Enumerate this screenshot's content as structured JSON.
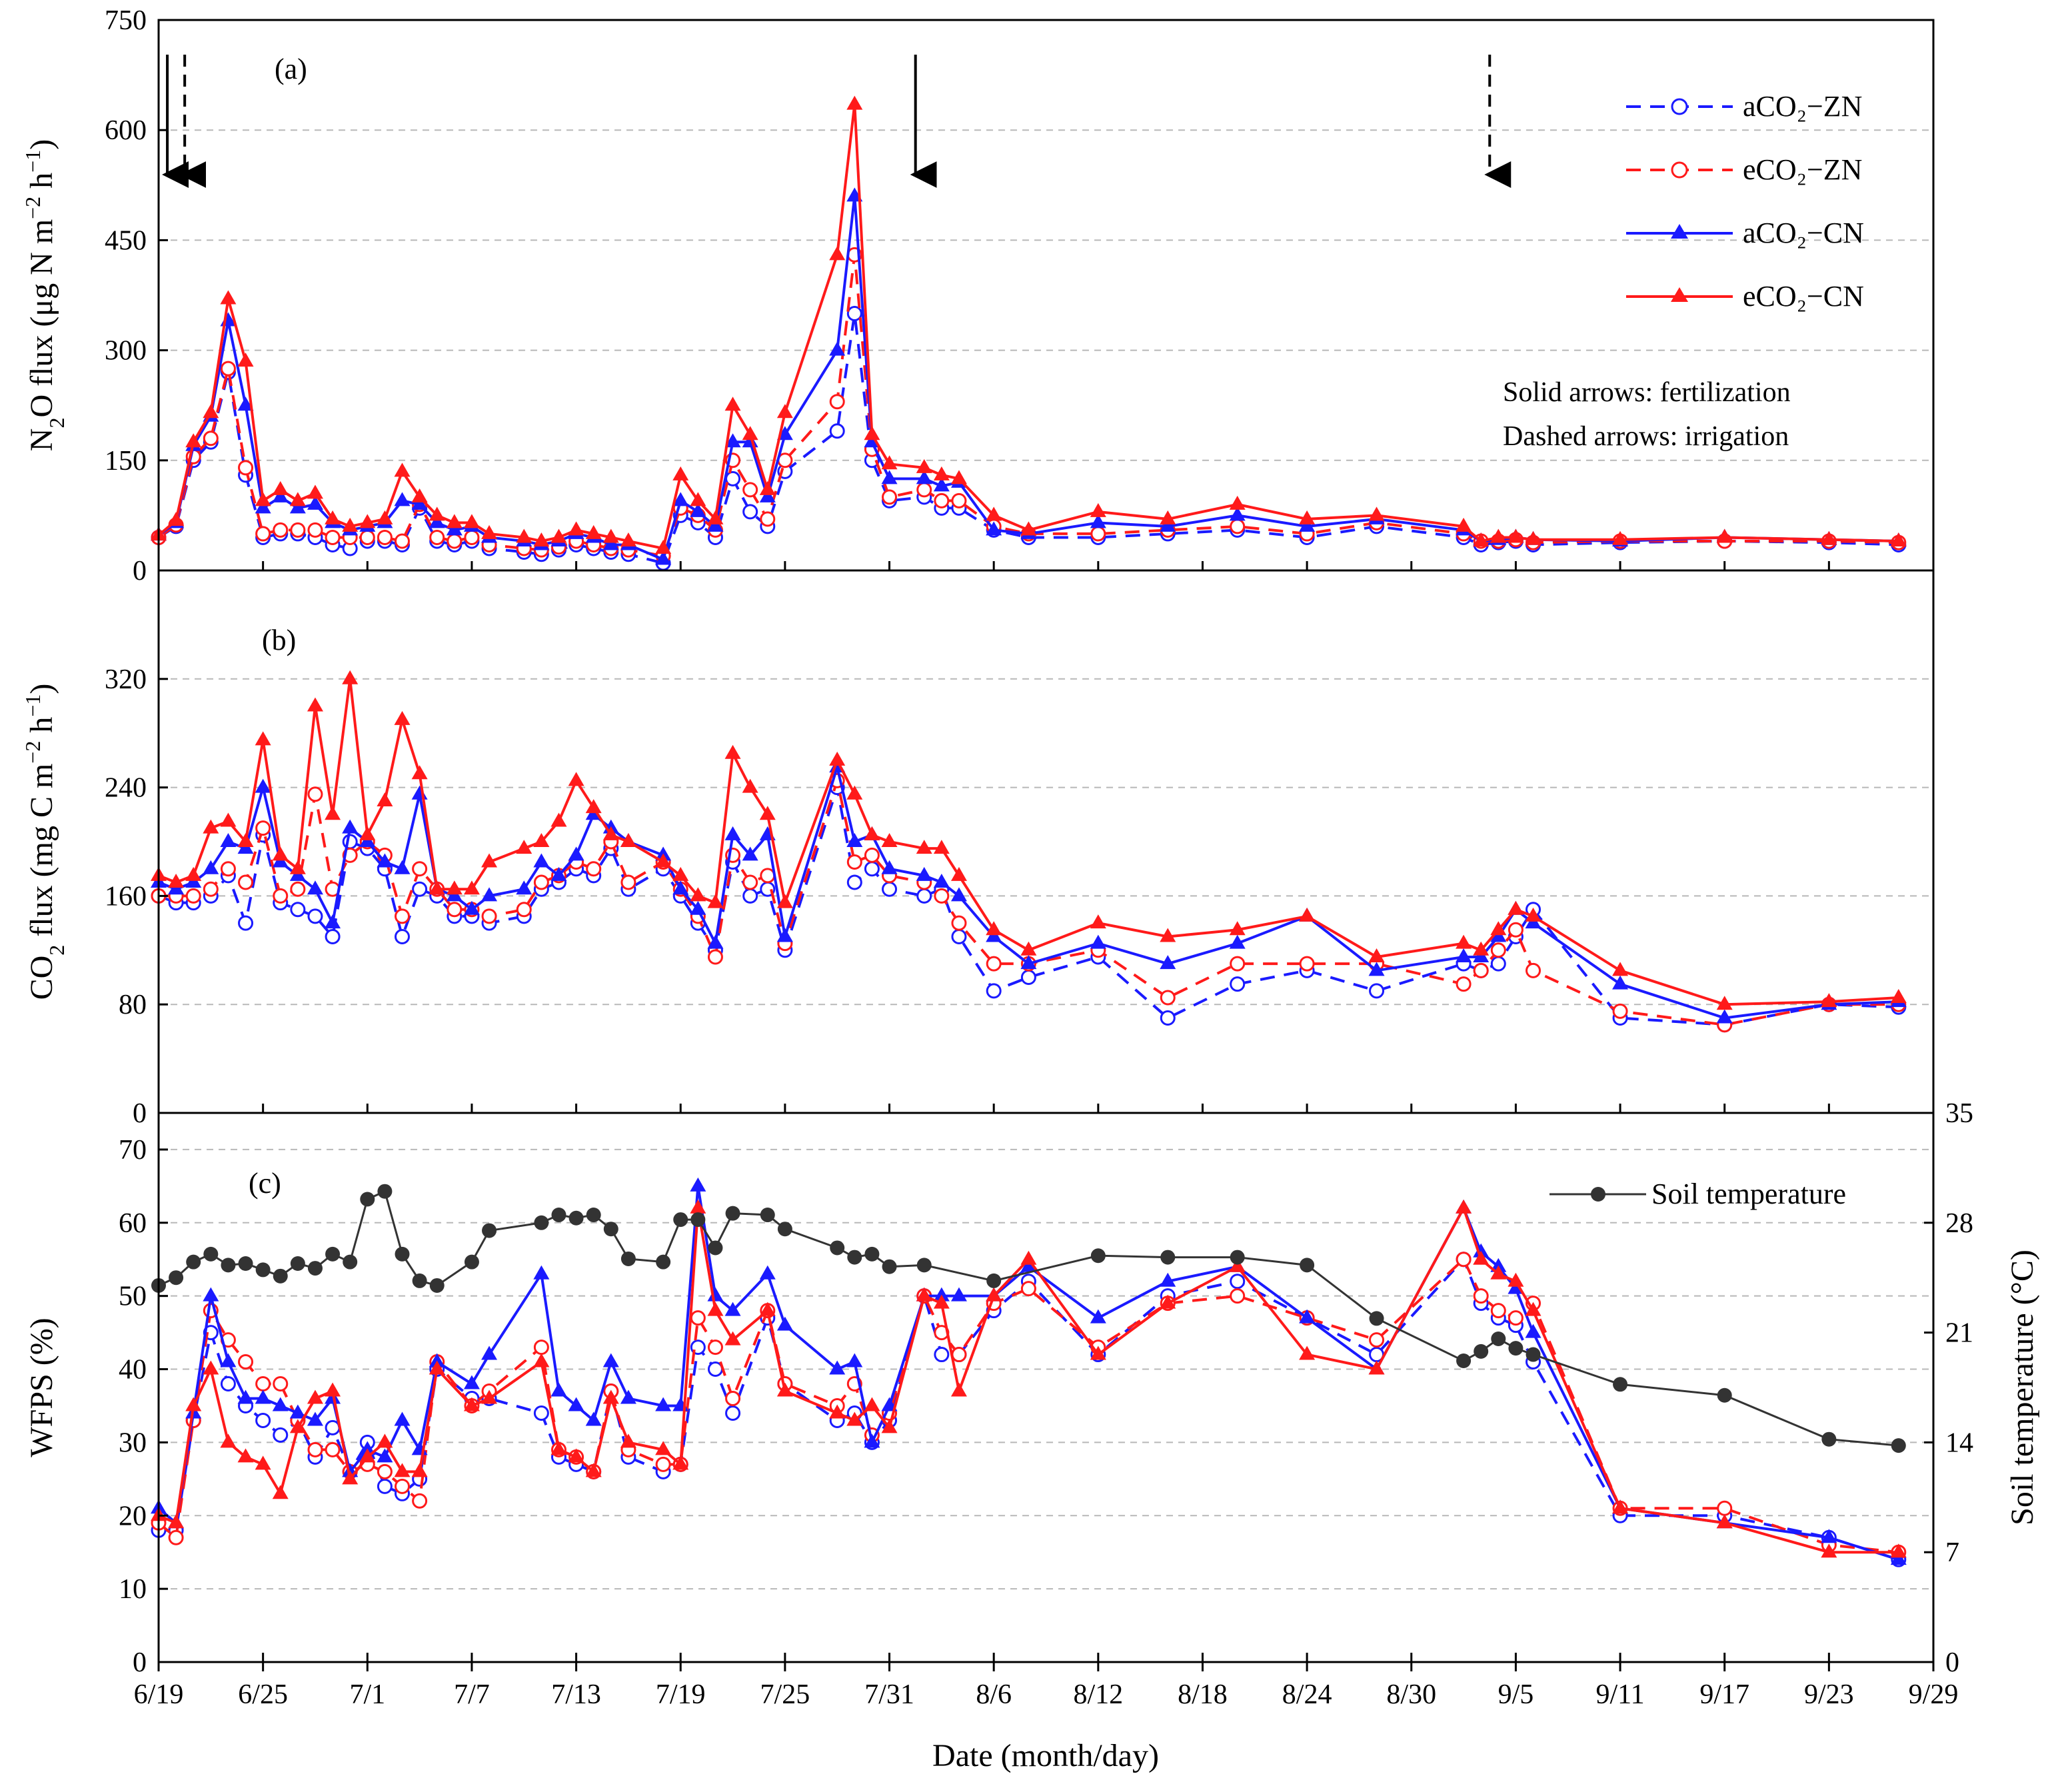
{
  "figure": {
    "x_axis_title": "Date (month/day)",
    "x_ticks": [
      {
        "day": 0,
        "label": "6/19"
      },
      {
        "day": 6,
        "label": "6/25"
      },
      {
        "day": 12,
        "label": "7/1"
      },
      {
        "day": 18,
        "label": "7/7"
      },
      {
        "day": 24,
        "label": "7/13"
      },
      {
        "day": 30,
        "label": "7/19"
      },
      {
        "day": 36,
        "label": "7/25"
      },
      {
        "day": 42,
        "label": "7/31"
      },
      {
        "day": 48,
        "label": "8/6"
      },
      {
        "day": 54,
        "label": "8/12"
      },
      {
        "day": 60,
        "label": "8/18"
      },
      {
        "day": 66,
        "label": "8/24"
      },
      {
        "day": 72,
        "label": "8/30"
      },
      {
        "day": 78,
        "label": "9/5"
      },
      {
        "day": 84,
        "label": "9/11"
      },
      {
        "day": 90,
        "label": "9/17"
      },
      {
        "day": 96,
        "label": "9/23"
      },
      {
        "day": 102,
        "label": "9/29"
      }
    ],
    "colors": {
      "blue": "#1a1aff",
      "red": "#ff1a1a",
      "black": "#222222",
      "grid": "#b8b8b8",
      "temp": "#333333"
    }
  },
  "panel_a": {
    "label": "(a)",
    "y_title_parts": [
      "N",
      "2",
      "O flux (μg N m",
      "−2",
      " h",
      "−1",
      ")"
    ],
    "legend": [
      "aCO₂−ZN",
      "eCO₂−ZN",
      "aCO₂−CN",
      "eCO₂−CN"
    ],
    "annotations": [
      "Solid arrows: fertilization",
      "Dashed arrows: irrigation"
    ],
    "fertilization_days": [
      0.5,
      43.5
    ],
    "irrigation_days": [
      1.5,
      76.5
    ]
  },
  "panel_b": {
    "label": "(b)",
    "y_title_parts": [
      "CO",
      "2",
      " flux (mg C m",
      "−2",
      " h",
      "−1",
      ")"
    ]
  },
  "panel_c": {
    "label": "(c)",
    "y_title": "WFPS (%)",
    "y2_title": "Soil temperature (°C)",
    "legend_temp": "Soil temperature"
  },
  "chart_data": [
    {
      "type": "line",
      "title": "(a) N2O flux",
      "xlabel": "Date (month/day)",
      "ylabel": "N2O flux (μg N m−2 h−1)",
      "ylim": [
        0,
        750
      ],
      "yticks": [
        0,
        150,
        300,
        450,
        600,
        750
      ],
      "x": [
        0,
        1,
        2,
        3,
        4,
        5,
        6,
        7,
        8,
        9,
        10,
        11,
        12,
        13,
        14,
        15,
        16,
        17,
        18,
        19,
        21,
        22,
        23,
        24,
        25,
        26,
        27,
        29,
        30,
        31,
        32,
        33,
        34,
        35,
        36,
        39,
        40,
        41,
        42,
        44,
        45,
        46,
        48,
        50,
        54,
        58,
        62,
        66,
        70,
        75,
        76,
        77,
        78,
        79,
        84,
        90,
        96,
        100
      ],
      "series": [
        {
          "name": "aCO₂−ZN",
          "values": [
            45,
            60,
            150,
            175,
            270,
            130,
            45,
            50,
            50,
            45,
            35,
            30,
            40,
            40,
            35,
            85,
            40,
            35,
            40,
            30,
            25,
            22,
            28,
            35,
            30,
            25,
            22,
            10,
            75,
            65,
            45,
            125,
            80,
            60,
            135,
            190,
            350,
            150,
            95,
            100,
            85,
            85,
            55,
            45,
            45,
            50,
            55,
            45,
            60,
            45,
            35,
            38,
            40,
            35,
            38,
            40,
            38,
            35
          ]
        },
        {
          "name": "eCO₂−ZN",
          "values": [
            45,
            62,
            155,
            180,
            275,
            140,
            50,
            55,
            55,
            55,
            45,
            45,
            45,
            45,
            40,
            90,
            45,
            40,
            45,
            35,
            30,
            28,
            32,
            40,
            35,
            30,
            28,
            20,
            85,
            75,
            55,
            150,
            110,
            70,
            150,
            230,
            430,
            165,
            100,
            110,
            95,
            95,
            60,
            50,
            50,
            55,
            60,
            50,
            65,
            50,
            40,
            40,
            42,
            38,
            40,
            40,
            40,
            38
          ]
        },
        {
          "name": "aCO₂−CN",
          "values": [
            48,
            65,
            170,
            210,
            340,
            225,
            85,
            100,
            85,
            90,
            65,
            55,
            60,
            65,
            95,
            90,
            65,
            55,
            60,
            45,
            40,
            35,
            40,
            50,
            45,
            35,
            35,
            15,
            95,
            80,
            60,
            175,
            175,
            100,
            185,
            300,
            510,
            175,
            125,
            125,
            115,
            120,
            55,
            50,
            65,
            60,
            75,
            60,
            70,
            55,
            40,
            42,
            45,
            42,
            40,
            45,
            42,
            40
          ]
        },
        {
          "name": "eCO₂−CN",
          "values": [
            48,
            68,
            175,
            215,
            370,
            285,
            95,
            110,
            95,
            105,
            70,
            60,
            65,
            70,
            135,
            100,
            75,
            65,
            65,
            50,
            45,
            40,
            45,
            55,
            50,
            45,
            40,
            30,
            130,
            95,
            70,
            225,
            185,
            110,
            215,
            430,
            635,
            185,
            145,
            140,
            130,
            125,
            75,
            55,
            80,
            70,
            90,
            70,
            75,
            60,
            40,
            45,
            45,
            42,
            42,
            45,
            42,
            40
          ]
        }
      ]
    },
    {
      "type": "line",
      "title": "(b) CO2 flux",
      "xlabel": "Date (month/day)",
      "ylabel": "CO2 flux (mg C m−2 h−1)",
      "ylim": [
        0,
        400
      ],
      "yticks": [
        0,
        80,
        160,
        240,
        320
      ],
      "x": [
        0,
        1,
        2,
        3,
        4,
        5,
        6,
        7,
        8,
        9,
        10,
        11,
        12,
        13,
        14,
        15,
        16,
        17,
        18,
        19,
        21,
        22,
        23,
        24,
        25,
        26,
        27,
        29,
        30,
        31,
        32,
        33,
        34,
        35,
        36,
        39,
        40,
        41,
        42,
        44,
        45,
        46,
        48,
        50,
        54,
        58,
        62,
        66,
        70,
        75,
        76,
        77,
        78,
        79,
        84,
        90,
        96,
        100
      ],
      "series": [
        {
          "name": "aCO₂−ZN",
          "values": [
            160,
            155,
            155,
            160,
            175,
            140,
            205,
            155,
            150,
            145,
            130,
            200,
            195,
            180,
            130,
            165,
            160,
            145,
            145,
            140,
            145,
            165,
            170,
            180,
            175,
            195,
            165,
            180,
            160,
            140,
            120,
            185,
            160,
            165,
            120,
            240,
            170,
            180,
            165,
            160,
            165,
            130,
            90,
            100,
            115,
            70,
            95,
            105,
            90,
            110,
            105,
            110,
            130,
            150,
            70,
            65,
            80,
            78
          ]
        },
        {
          "name": "eCO₂−ZN",
          "values": [
            160,
            160,
            160,
            165,
            180,
            170,
            210,
            160,
            165,
            235,
            165,
            190,
            200,
            190,
            145,
            180,
            165,
            150,
            150,
            145,
            150,
            170,
            175,
            185,
            180,
            200,
            170,
            185,
            165,
            145,
            115,
            190,
            170,
            175,
            125,
            245,
            185,
            190,
            175,
            170,
            160,
            140,
            110,
            110,
            120,
            85,
            110,
            110,
            110,
            95,
            105,
            120,
            135,
            105,
            75,
            65,
            80,
            80
          ]
        },
        {
          "name": "aCO₂−CN",
          "values": [
            170,
            165,
            170,
            180,
            200,
            195,
            240,
            185,
            175,
            165,
            140,
            210,
            200,
            185,
            180,
            235,
            165,
            160,
            150,
            160,
            165,
            185,
            175,
            190,
            220,
            210,
            200,
            190,
            165,
            150,
            125,
            205,
            190,
            205,
            130,
            255,
            200,
            205,
            180,
            175,
            170,
            160,
            130,
            110,
            125,
            110,
            125,
            145,
            105,
            115,
            115,
            130,
            150,
            140,
            95,
            70,
            80,
            82
          ]
        },
        {
          "name": "eCO₂−CN",
          "values": [
            175,
            170,
            175,
            210,
            215,
            200,
            275,
            190,
            180,
            300,
            220,
            320,
            205,
            230,
            290,
            250,
            165,
            165,
            165,
            185,
            195,
            200,
            215,
            245,
            225,
            205,
            200,
            185,
            175,
            160,
            155,
            265,
            240,
            220,
            155,
            260,
            235,
            205,
            200,
            195,
            195,
            175,
            135,
            120,
            140,
            130,
            135,
            145,
            115,
            125,
            120,
            135,
            150,
            145,
            105,
            80,
            82,
            85
          ]
        }
      ]
    },
    {
      "type": "line",
      "title": "(c) WFPS and soil temperature",
      "xlabel": "Date (month/day)",
      "ylabel": "WFPS (%)",
      "y2label": "Soil temperature (°C)",
      "ylim": [
        0,
        75
      ],
      "yticks": [
        0,
        10,
        20,
        30,
        40,
        50,
        60,
        70
      ],
      "y2lim": [
        0,
        35
      ],
      "y2ticks": [
        0,
        7,
        14,
        21,
        28,
        35
      ],
      "x": [
        0,
        1,
        2,
        3,
        4,
        5,
        6,
        7,
        8,
        9,
        10,
        11,
        12,
        13,
        14,
        15,
        16,
        18,
        19,
        22,
        23,
        24,
        25,
        26,
        27,
        29,
        30,
        31,
        32,
        33,
        35,
        36,
        39,
        40,
        41,
        42,
        44,
        45,
        46,
        48,
        50,
        54,
        58,
        62,
        66,
        70,
        75,
        76,
        77,
        78,
        79,
        84,
        90,
        96,
        100
      ],
      "series": [
        {
          "name": "aCO₂−ZN",
          "values": [
            18,
            18,
            33,
            45,
            38,
            35,
            33,
            31,
            33,
            28,
            32,
            26,
            30,
            24,
            23,
            25,
            40,
            36,
            36,
            34,
            28,
            27,
            26,
            37,
            28,
            26,
            27,
            43,
            40,
            34,
            47,
            38,
            33,
            34,
            30,
            33,
            50,
            42,
            42,
            48,
            52,
            42,
            50,
            52,
            47,
            42,
            55,
            49,
            47,
            46,
            41,
            20,
            20,
            17,
            14
          ]
        },
        {
          "name": "eCO₂−ZN",
          "values": [
            19,
            17,
            33,
            48,
            44,
            41,
            38,
            38,
            33,
            29,
            29,
            26,
            27,
            26,
            24,
            22,
            41,
            35,
            37,
            43,
            29,
            28,
            26,
            37,
            29,
            27,
            27,
            47,
            43,
            36,
            48,
            38,
            35,
            38,
            31,
            34,
            50,
            45,
            42,
            49,
            51,
            43,
            49,
            50,
            47,
            44,
            55,
            50,
            48,
            47,
            49,
            21,
            21,
            16,
            15
          ]
        },
        {
          "name": "aCO₂−CN",
          "values": [
            21,
            19,
            34,
            50,
            41,
            36,
            36,
            35,
            34,
            33,
            36,
            26,
            29,
            28,
            33,
            29,
            41,
            38,
            42,
            53,
            37,
            35,
            33,
            41,
            36,
            35,
            35,
            65,
            50,
            48,
            53,
            46,
            40,
            41,
            30,
            35,
            50,
            50,
            50,
            50,
            54,
            47,
            52,
            54,
            47,
            40,
            62,
            56,
            54,
            51,
            45,
            21,
            19,
            17,
            14
          ]
        },
        {
          "name": "eCO₂−CN",
          "values": [
            20,
            19,
            35,
            40,
            30,
            28,
            27,
            23,
            32,
            36,
            37,
            25,
            28,
            30,
            26,
            26,
            40,
            35,
            36,
            41,
            29,
            28,
            26,
            36,
            30,
            29,
            27,
            62,
            48,
            44,
            48,
            37,
            34,
            33,
            35,
            32,
            50,
            49,
            37,
            50,
            55,
            42,
            49,
            54,
            42,
            40,
            62,
            55,
            53,
            52,
            48,
            21,
            19,
            15,
            15
          ]
        },
        {
          "name": "Soil temperature",
          "axis": "right",
          "x": [
            0,
            1,
            2,
            3,
            4,
            5,
            6,
            7,
            8,
            9,
            10,
            11,
            12,
            13,
            14,
            15,
            16,
            18,
            19,
            22,
            23,
            24,
            25,
            26,
            27,
            29,
            30,
            31,
            32,
            33,
            35,
            36,
            39,
            40,
            41,
            42,
            44,
            48,
            54,
            58,
            62,
            66,
            70,
            75,
            76,
            77,
            78,
            79,
            84,
            90,
            96,
            100
          ],
          "values": [
            24,
            24.5,
            25.5,
            26,
            25.3,
            25.4,
            25,
            24.6,
            25.4,
            25.1,
            26,
            25.5,
            29.5,
            30,
            26,
            24.3,
            24,
            25.5,
            27.5,
            28,
            28.5,
            28.3,
            28.5,
            27.6,
            25.7,
            25.5,
            28.2,
            28.2,
            26.4,
            28.6,
            28.5,
            27.6,
            26.4,
            25.8,
            26,
            25.2,
            25.3,
            24.3,
            25.9,
            25.8,
            25.8,
            25.3,
            21.9,
            19.2,
            19.8,
            20.6,
            20,
            19.6,
            17.7,
            17,
            14.2,
            13.8
          ]
        }
      ]
    }
  ]
}
